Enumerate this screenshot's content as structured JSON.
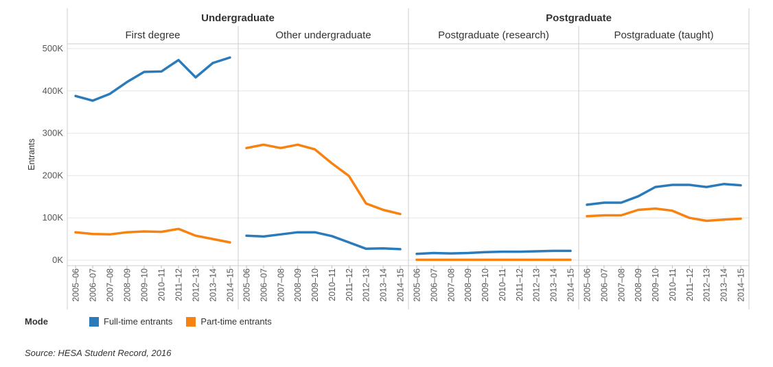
{
  "chart_data": {
    "type": "line",
    "y_axis": {
      "title": "Entrants",
      "ticks": [
        "0K",
        "100K",
        "200K",
        "300K",
        "400K",
        "500K"
      ],
      "tick_values": [
        0,
        100000,
        200000,
        300000,
        400000,
        500000
      ],
      "ylim": [
        0,
        520000
      ]
    },
    "x": [
      "2005–06",
      "2006–07",
      "2007–08",
      "2008–09",
      "2009–10",
      "2010–11",
      "2011–12",
      "2012–13",
      "2013–14",
      "2014–15"
    ],
    "groups": [
      {
        "title": "Undergraduate",
        "panels": [
          0,
          1
        ]
      },
      {
        "title": "Postgraduate",
        "panels": [
          2,
          3
        ]
      }
    ],
    "panels": [
      {
        "title": "First degree",
        "series": [
          {
            "name": "Full-time entrants",
            "values": [
              388000,
              377000,
              393000,
              421000,
              445000,
              446000,
              473000,
              432000,
              466000,
              479000
            ]
          },
          {
            "name": "Part-time entrants",
            "values": [
              66000,
              62000,
              61000,
              66000,
              68000,
              67000,
              74000,
              58000,
              50000,
              42000
            ]
          }
        ]
      },
      {
        "title": "Other undergraduate",
        "series": [
          {
            "name": "Full-time entrants",
            "values": [
              58000,
              56000,
              61000,
              66000,
              66000,
              57000,
              42000,
              27000,
              28000,
              26000
            ]
          },
          {
            "name": "Part-time entrants",
            "values": [
              265000,
              273000,
              265000,
              273000,
              262000,
              229000,
              199000,
              134000,
              119000,
              109000
            ]
          }
        ]
      },
      {
        "title": "Postgraduate (research)",
        "series": [
          {
            "name": "Full-time entrants",
            "values": [
              15000,
              17000,
              16000,
              17000,
              19000,
              20000,
              20000,
              21000,
              22000,
              22000
            ]
          },
          {
            "name": "Part-time entrants",
            "values": [
              1000,
              1000,
              1000,
              1000,
              1000,
              1000,
              1000,
              1000,
              1000,
              1000
            ]
          }
        ]
      },
      {
        "title": "Postgraduate (taught)",
        "series": [
          {
            "name": "Full-time entrants",
            "values": [
              131000,
              136000,
              136000,
              151000,
              173000,
              178000,
              178000,
              173000,
              180000,
              177000
            ]
          },
          {
            "name": "Part-time entrants",
            "values": [
              104000,
              106000,
              106000,
              119000,
              122000,
              117000,
              100000,
              93000,
              96000,
              98000
            ]
          }
        ]
      }
    ]
  },
  "colors": {
    "Full-time entrants": "#2b7bba",
    "Part-time entrants": "#f7820f",
    "grid": "#e6e6e6",
    "divider": "#cccccc"
  },
  "legend": {
    "title": "Mode",
    "items": [
      {
        "label": "Full-time entrants",
        "color": "#2b7bba"
      },
      {
        "label": "Part-time entrants",
        "color": "#f7820f"
      }
    ]
  },
  "source": "Source: HESA Student Record, 2016"
}
